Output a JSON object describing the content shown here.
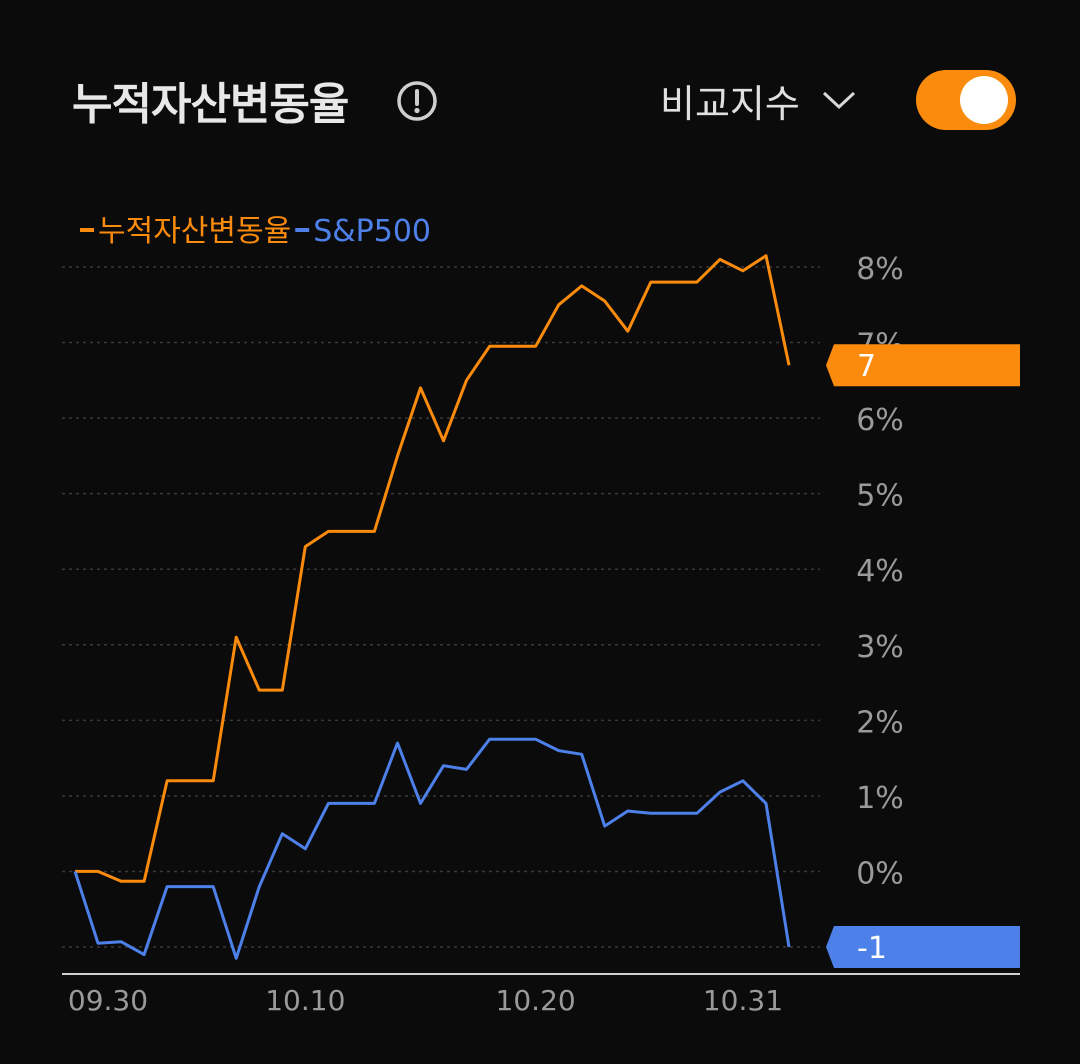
{
  "header": {
    "title": "누적자산변동율",
    "compare_label": "비교지수",
    "toggle_on": true
  },
  "colors": {
    "background": "#0b0b0c",
    "primary": "#fb8b0c",
    "benchmark": "#4d80e8",
    "grid": "#3a3a3a",
    "tick": "#9a9a9a",
    "axis": "#d0d0d0"
  },
  "chart_data": {
    "type": "line",
    "legend": [
      {
        "name": "누적자산변동율",
        "color": "#fb8b0c"
      },
      {
        "name": "S&P500",
        "color": "#4d80e8"
      }
    ],
    "legend_position": "top-left",
    "y_axis_position": "right",
    "y_ticks": [
      "8%",
      "7%",
      "6%",
      "5%",
      "4%",
      "3%",
      "2%",
      "1%",
      "0%"
    ],
    "ylim": [
      -1,
      8
    ],
    "x_ticks": [
      {
        "label": "09.30",
        "index": 0
      },
      {
        "label": "10.10",
        "index": 10
      },
      {
        "label": "10.20",
        "index": 20
      },
      {
        "label": "10.31",
        "index": 29
      }
    ],
    "grid": true,
    "series": [
      {
        "name": "누적자산변동율",
        "color": "#fb8b0c",
        "values": [
          0,
          0,
          -0.13,
          -0.13,
          1.2,
          1.2,
          1.2,
          3.1,
          2.4,
          2.4,
          4.3,
          4.5,
          4.5,
          4.5,
          5.5,
          6.4,
          5.7,
          6.5,
          6.95,
          6.95,
          6.95,
          7.5,
          7.75,
          7.55,
          7.15,
          7.8,
          7.8,
          7.8,
          8.1,
          7.95,
          8.15,
          6.7
        ],
        "end_label": "7"
      },
      {
        "name": "S&P500",
        "color": "#4d80e8",
        "values": [
          0,
          -0.95,
          -0.93,
          -1.1,
          -0.2,
          -0.2,
          -0.2,
          -1.15,
          -0.2,
          0.5,
          0.3,
          0.9,
          0.9,
          0.9,
          1.7,
          0.9,
          1.4,
          1.35,
          1.75,
          1.75,
          1.75,
          1.6,
          1.55,
          0.6,
          0.8,
          0.77,
          0.77,
          0.77,
          1.05,
          1.2,
          0.9,
          -1.0
        ],
        "end_label": "-1"
      }
    ]
  }
}
